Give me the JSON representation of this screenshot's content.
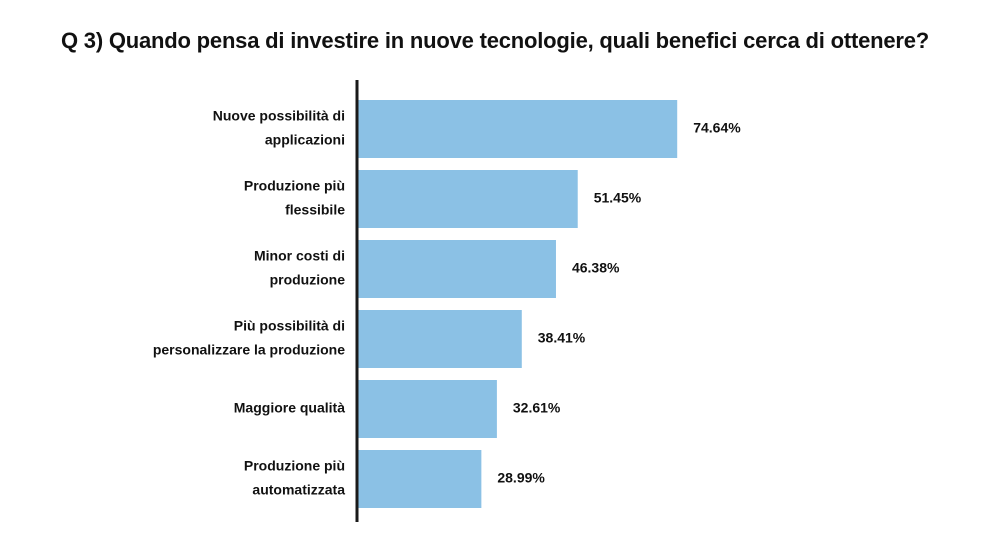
{
  "chart_data": {
    "type": "bar",
    "orientation": "horizontal",
    "title": "Q 3) Quando pensa di investire in nuove tecnologie, quali benefici cerca di ottenere?",
    "categories": [
      [
        "Nuove possibilità di",
        "applicazioni"
      ],
      [
        "Produzione più",
        "flessibile"
      ],
      [
        "Minor costi di",
        "produzione"
      ],
      [
        "Più possibilità di",
        "personalizzare la produzione"
      ],
      [
        "Maggiore qualità"
      ],
      [
        "Produzione più",
        "automatizzata"
      ]
    ],
    "values": [
      74.64,
      51.45,
      46.38,
      38.41,
      32.61,
      28.99
    ],
    "value_labels": [
      "74.64%",
      "51.45%",
      "46.38%",
      "38.41%",
      "32.61%",
      "28.99%"
    ],
    "unit": "%",
    "xlim": [
      0,
      100
    ],
    "xlabel": "",
    "ylabel": "",
    "grid": false,
    "colors": {
      "bar": "#8BC1E5",
      "axis": "#1a1a1a",
      "text": "#111111"
    }
  }
}
